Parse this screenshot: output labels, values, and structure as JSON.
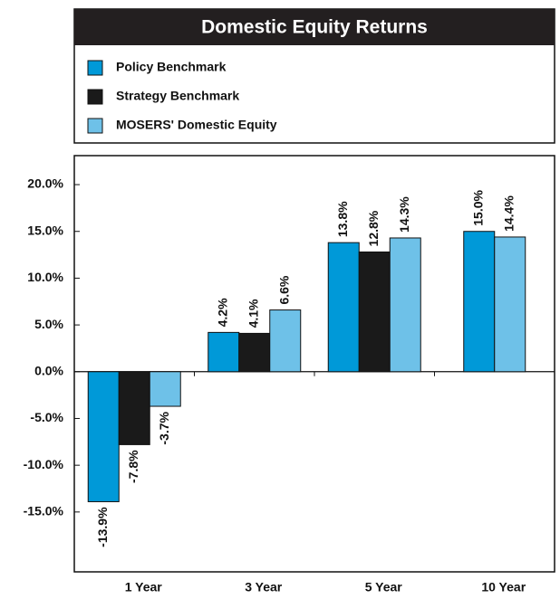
{
  "chart_data": {
    "type": "bar",
    "title": "Domestic Equity Returns",
    "categories": [
      "1 Year",
      "3 Year",
      "5 Year",
      "10 Year"
    ],
    "series": [
      {
        "name": "Policy Benchmark",
        "color": "#0099d8",
        "values": [
          -13.9,
          4.2,
          13.8,
          15.0
        ],
        "value_labels": [
          "-13.9%",
          "4.2%",
          "13.8%",
          "15.0%"
        ]
      },
      {
        "name": "Strategy Benchmark",
        "color": "#1a1a1a",
        "values": [
          -7.8,
          4.1,
          12.8,
          null
        ],
        "value_labels": [
          "-7.8%",
          "4.1%",
          "12.8%",
          null
        ]
      },
      {
        "name": "MOSERS' Domestic Equity",
        "color": "#6ec1e8",
        "values": [
          -3.7,
          6.6,
          14.3,
          14.4
        ],
        "value_labels": [
          "-3.7%",
          "6.6%",
          "14.3%",
          "14.4%"
        ]
      }
    ],
    "ylim": [
      -21.4,
      23.1
    ],
    "yticks": [
      {
        "value": -15,
        "label": "-15.0%"
      },
      {
        "value": -10,
        "label": "-10.0%"
      },
      {
        "value": -5,
        "label": "-5.0%"
      },
      {
        "value": 0,
        "label": "0.0%"
      },
      {
        "value": 5,
        "label": "5.0%"
      },
      {
        "value": 10,
        "label": "10.0%"
      },
      {
        "value": 15,
        "label": "15.0%"
      },
      {
        "value": 20,
        "label": "20.0%"
      }
    ]
  }
}
